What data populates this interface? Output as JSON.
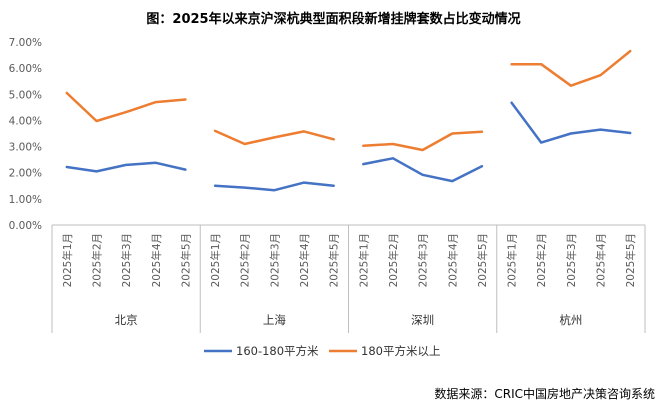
{
  "chart_data": {
    "type": "line",
    "title": "图：2025年以来京沪深杭典型面积段新增挂牌套数占比变动情况",
    "source": "数据来源：CRIC中国房地产决策咨询系统",
    "ylim": [
      0,
      7
    ],
    "y_ticks": [
      "0.00%",
      "1.00%",
      "2.00%",
      "3.00%",
      "4.00%",
      "5.00%",
      "6.00%",
      "7.00%"
    ],
    "y_tick_values": [
      0,
      1,
      2,
      3,
      4,
      5,
      6,
      7
    ],
    "grid": false,
    "legend_position": "bottom",
    "groups": [
      {
        "name": "北京",
        "categories": [
          "2025年1月",
          "2025年2月",
          "2025年3月",
          "2025年4月",
          "2025年5月"
        ],
        "series": [
          {
            "name": "160-180平方米",
            "values": [
              2.22,
              2.05,
              2.3,
              2.38,
              2.12
            ]
          },
          {
            "name": "180平方米以上",
            "values": [
              5.05,
              3.98,
              4.32,
              4.7,
              4.8
            ]
          }
        ]
      },
      {
        "name": "上海",
        "categories": [
          "2025年1月",
          "2025年2月",
          "2025年3月",
          "2025年4月",
          "2025年5月"
        ],
        "series": [
          {
            "name": "160-180平方米",
            "values": [
              1.5,
              1.43,
              1.33,
              1.62,
              1.5
            ]
          },
          {
            "name": "180平方米以上",
            "values": [
              3.6,
              3.1,
              3.35,
              3.58,
              3.28
            ]
          }
        ]
      },
      {
        "name": "深圳",
        "categories": [
          "2025年1月",
          "2025年2月",
          "2025年3月",
          "2025年4月",
          "2025年5月"
        ],
        "series": [
          {
            "name": "160-180平方米",
            "values": [
              2.33,
              2.55,
              1.92,
              1.68,
              2.25
            ]
          },
          {
            "name": "180平方米以上",
            "values": [
              3.03,
              3.1,
              2.87,
              3.5,
              3.57
            ]
          }
        ]
      },
      {
        "name": "杭州",
        "categories": [
          "2025年1月",
          "2025年2月",
          "2025年3月",
          "2025年4月",
          "2025年5月"
        ],
        "series": [
          {
            "name": "160-180平方米",
            "values": [
              4.68,
              3.15,
              3.5,
              3.65,
              3.52
            ]
          },
          {
            "name": "180平方米以上",
            "values": [
              6.15,
              6.15,
              5.33,
              5.73,
              6.65
            ]
          }
        ]
      }
    ],
    "legend": [
      {
        "name": "160-180平方米",
        "color": "#4472C4"
      },
      {
        "name": "180平方米以上",
        "color": "#ED7D31"
      }
    ]
  }
}
